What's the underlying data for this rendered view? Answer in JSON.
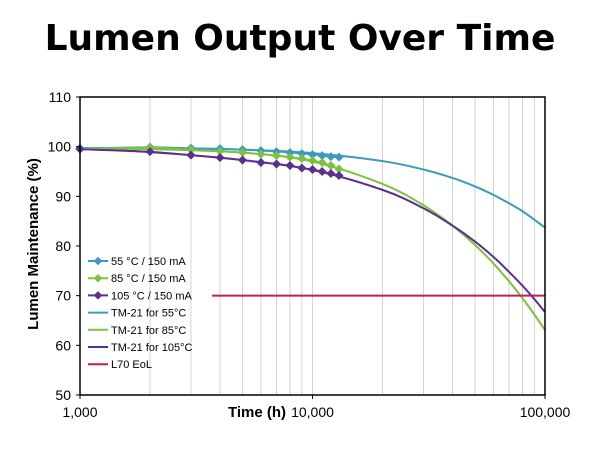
{
  "title": "Lumen Output Over Time",
  "colors": {
    "s55": "#3a9cbc",
    "s85": "#7dc13f",
    "s105": "#5b2f8e",
    "eol": "#c8195a"
  },
  "chart_data": {
    "type": "line",
    "title": "Lumen Output Over Time",
    "xlabel": "Time (h)",
    "ylabel": "Lumen Maintenance (%)",
    "x_scale": "log",
    "xlim": [
      1000,
      100000
    ],
    "ylim": [
      50,
      110
    ],
    "x_ticks": [
      1000,
      10000,
      100000
    ],
    "x_tick_labels": [
      "1,000",
      "10,000",
      "100,000"
    ],
    "y_ticks": [
      50,
      60,
      70,
      80,
      90,
      100,
      110
    ],
    "y_tick_labels": [
      "50",
      "60",
      "70",
      "80",
      "90",
      "100",
      "110"
    ],
    "grid": "vertical log minor gridlines",
    "legend_position": "bottom-left",
    "series": [
      {
        "name": "55 °C / 150 mA",
        "kind": "measured",
        "color": "#3a9cbc",
        "x": [
          1000,
          2000,
          3000,
          4000,
          5000,
          6000,
          7000,
          8000,
          9000,
          10000,
          11000,
          12000,
          13000
        ],
        "y": [
          99.7,
          99.9,
          99.7,
          99.6,
          99.4,
          99.2,
          99.0,
          98.8,
          98.6,
          98.4,
          98.2,
          98.0,
          97.9
        ]
      },
      {
        "name": "85 °C / 150 mA",
        "kind": "measured",
        "color": "#7dc13f",
        "x": [
          1000,
          2000,
          3000,
          4000,
          5000,
          6000,
          7000,
          8000,
          9000,
          10000,
          11000,
          12000,
          13000
        ],
        "y": [
          99.6,
          99.8,
          99.4,
          99.1,
          98.8,
          98.5,
          98.2,
          97.9,
          97.6,
          97.2,
          96.8,
          96.2,
          95.5
        ]
      },
      {
        "name": "105 °C / 150 mA",
        "kind": "measured",
        "color": "#5b2f8e",
        "x": [
          1000,
          2000,
          3000,
          4000,
          5000,
          6000,
          7000,
          8000,
          9000,
          10000,
          11000,
          12000,
          13000
        ],
        "y": [
          99.5,
          99.0,
          98.3,
          97.8,
          97.3,
          96.8,
          96.5,
          96.2,
          95.7,
          95.4,
          95.0,
          94.6,
          94.2
        ]
      },
      {
        "name": "TM-21 for 55°C",
        "kind": "projection",
        "color": "#3a9cbc",
        "x": [
          1000,
          2000,
          5000,
          10000,
          20000,
          30000,
          40000,
          50000,
          60000,
          70000,
          80000,
          90000,
          100000
        ],
        "y": [
          99.7,
          99.7,
          99.4,
          98.7,
          97.1,
          95.4,
          93.7,
          92.0,
          90.3,
          88.6,
          87.0,
          85.3,
          83.7
        ]
      },
      {
        "name": "TM-21 for 85°C",
        "kind": "projection",
        "color": "#7dc13f",
        "x": [
          1000,
          2000,
          5000,
          10000,
          20000,
          30000,
          40000,
          50000,
          60000,
          70000,
          80000,
          90000,
          100000
        ],
        "y": [
          99.6,
          99.5,
          98.8,
          97.0,
          92.5,
          88.2,
          84.1,
          80.2,
          76.5,
          72.9,
          69.5,
          66.2,
          63.1
        ]
      },
      {
        "name": "TM-21 for 105°C",
        "kind": "projection",
        "color": "#5b2f8e",
        "x": [
          1000,
          2000,
          5000,
          10000,
          20000,
          30000,
          40000,
          50000,
          60000,
          70000,
          80000,
          90000,
          100000
        ],
        "y": [
          99.5,
          98.9,
          97.3,
          95.3,
          91.3,
          87.6,
          84.1,
          80.9,
          77.8,
          74.8,
          72.0,
          69.3,
          66.7
        ]
      },
      {
        "name": "L70 EoL",
        "kind": "threshold",
        "color": "#c8195a",
        "x": [
          3700,
          100000
        ],
        "y": [
          70,
          70
        ]
      }
    ]
  }
}
